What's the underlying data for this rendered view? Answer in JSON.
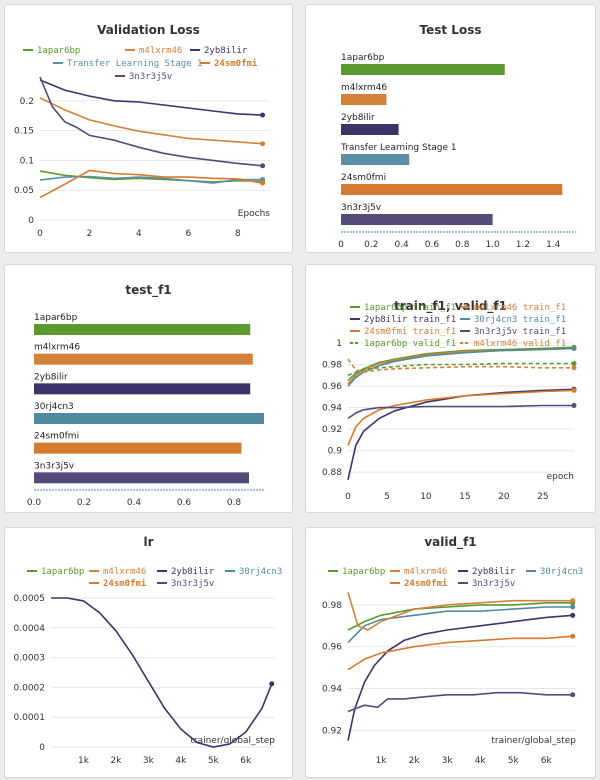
{
  "colors": {
    "1apar6bp": "#5a9a2e",
    "m4lxrm46": "#d4813a",
    "2yb8ilir": "#3b3569",
    "30rj4cn3": "#4f8a9e",
    "24sm0fmi": "#d47b2f",
    "3n3r3j5v": "#564a7a",
    "Transfer Learning Stage 1": "#5b8fa8"
  },
  "chart_data": [
    {
      "id": "validation_loss",
      "type": "line",
      "title": "Validation Loss",
      "xlabel": "Epochs",
      "ylabel": "",
      "xlim": [
        0,
        9.3
      ],
      "ylim": [
        0,
        0.24
      ],
      "xticks": [
        0,
        2,
        4,
        6,
        8
      ],
      "yticks": [
        0,
        0.05,
        0.1,
        0.15,
        0.2
      ],
      "ytick_labels": [
        "0",
        "0.05",
        "0.1",
        "0.15",
        "0.2"
      ],
      "legend": [
        "1apar6bp",
        "m4lxrm46",
        "2yb8ilir",
        "Transfer Learning Stage 1",
        "24sm0fmi",
        "3n3r3j5v"
      ],
      "series": [
        {
          "name": "2yb8ilir",
          "x": [
            0,
            1,
            2,
            3,
            4,
            5,
            6,
            7,
            8,
            9
          ],
          "values": [
            0.235,
            0.218,
            0.208,
            0.2,
            0.198,
            0.193,
            0.188,
            0.183,
            0.178,
            0.176
          ]
        },
        {
          "name": "m4lxrm46",
          "x": [
            0,
            1,
            2,
            3,
            4,
            5,
            6,
            7,
            8,
            9
          ],
          "values": [
            0.205,
            0.185,
            0.168,
            0.158,
            0.149,
            0.143,
            0.137,
            0.134,
            0.131,
            0.128
          ]
        },
        {
          "name": "3n3r3j5v",
          "x": [
            0,
            0.5,
            1,
            1.5,
            2,
            3,
            4,
            5,
            6,
            7,
            8,
            9
          ],
          "values": [
            0.24,
            0.19,
            0.165,
            0.155,
            0.142,
            0.134,
            0.122,
            0.112,
            0.105,
            0.1,
            0.095,
            0.091
          ]
        },
        {
          "name": "1apar6bp",
          "x": [
            0,
            1,
            2,
            3,
            4,
            5,
            6,
            7,
            8,
            9
          ],
          "values": [
            0.082,
            0.075,
            0.071,
            0.068,
            0.07,
            0.068,
            0.066,
            0.064,
            0.066,
            0.065
          ]
        },
        {
          "name": "Transfer Learning Stage 1",
          "x": [
            0,
            1,
            2,
            3,
            4,
            5,
            6,
            7,
            8,
            9
          ],
          "values": [
            0.067,
            0.072,
            0.073,
            0.07,
            0.072,
            0.07,
            0.066,
            0.062,
            0.068,
            0.068
          ]
        },
        {
          "name": "24sm0fmi",
          "x": [
            0,
            1,
            2,
            3,
            4,
            5,
            6,
            7,
            8,
            9
          ],
          "values": [
            0.038,
            0.06,
            0.083,
            0.078,
            0.076,
            0.072,
            0.072,
            0.07,
            0.069,
            0.062
          ]
        }
      ]
    },
    {
      "id": "test_loss",
      "type": "bar",
      "title": "Test Loss",
      "xlim": [
        0,
        1.55
      ],
      "xticks": [
        0,
        0.2,
        0.4,
        0.6,
        0.8,
        1,
        1.2,
        1.4
      ],
      "xtick_labels": [
        "0",
        "0.2",
        "0.4",
        "0.6",
        "0.8",
        "1.0",
        "1.2",
        "1.4"
      ],
      "categories": [
        "1apar6bp",
        "m4lxrm46",
        "2yb8ilir",
        "Transfer Learning Stage 1",
        "24sm0fmi",
        "3n3r3j5v"
      ],
      "values": [
        1.08,
        0.3,
        0.38,
        0.45,
        1.46,
        1.0
      ]
    },
    {
      "id": "test_f1",
      "type": "bar",
      "title": "test_f1",
      "xlim": [
        0,
        0.92
      ],
      "xticks": [
        0,
        0.2,
        0.4,
        0.6,
        0.8
      ],
      "xtick_labels": [
        "0.0",
        "0.2",
        "0.4",
        "0.6",
        "0.8"
      ],
      "categories": [
        "1apar6bp",
        "m4lxrm46",
        "2yb8ilir",
        "30rj4cn3",
        "24sm0fmi",
        "3n3r3j5v"
      ],
      "values": [
        0.865,
        0.875,
        0.865,
        0.92,
        0.83,
        0.86
      ]
    },
    {
      "id": "train_valid_f1",
      "type": "line",
      "title": "train_f1, valid_f1",
      "xlabel": "epoch",
      "xlim": [
        0,
        29
      ],
      "ylim": [
        0.87,
        1.0
      ],
      "xticks": [
        0,
        5,
        10,
        15,
        20,
        25
      ],
      "yticks": [
        0.88,
        0.9,
        0.92,
        0.94,
        0.96,
        0.98,
        1.0
      ],
      "ytick_labels": [
        "0.88",
        "0.9",
        "0.92",
        "0.94",
        "0.96",
        "0.98",
        "1"
      ],
      "legend": [
        "1apar6bp train_f1",
        "m4lxrm46 train_f1",
        "2yb8ilir train_f1",
        "30rj4cn3 train_f1",
        "24sm0fmi train_f1",
        "3n3r3j5v train_f1",
        "1apar6bp valid_f1",
        "m4lxrm46 valid_f1"
      ],
      "series": [
        {
          "name": "1apar6bp train_f1",
          "x": [
            0,
            1,
            2,
            4,
            6,
            10,
            15,
            20,
            25,
            29
          ],
          "values": [
            0.965,
            0.972,
            0.976,
            0.982,
            0.985,
            0.99,
            0.993,
            0.994,
            0.995,
            0.996
          ]
        },
        {
          "name": "m4lxrm46 train_f1",
          "x": [
            0,
            1,
            2,
            4,
            6,
            10,
            15,
            20,
            25,
            29
          ],
          "values": [
            0.962,
            0.97,
            0.975,
            0.981,
            0.984,
            0.989,
            0.992,
            0.993,
            0.994,
            0.995
          ]
        },
        {
          "name": "2yb8ilir train_f1",
          "x": [
            0,
            1,
            2,
            4,
            6,
            10,
            15,
            20,
            25,
            29
          ],
          "values": [
            0.873,
            0.905,
            0.918,
            0.93,
            0.937,
            0.945,
            0.951,
            0.954,
            0.956,
            0.957
          ]
        },
        {
          "name": "30rj4cn3 train_f1",
          "x": [
            0,
            1,
            2,
            4,
            6,
            10,
            15,
            20,
            25,
            29
          ],
          "values": [
            0.96,
            0.968,
            0.973,
            0.979,
            0.983,
            0.988,
            0.991,
            0.993,
            0.994,
            0.995
          ]
        },
        {
          "name": "24sm0fmi train_f1",
          "x": [
            0,
            1,
            2,
            4,
            6,
            10,
            15,
            20,
            25,
            29
          ],
          "values": [
            0.905,
            0.922,
            0.93,
            0.938,
            0.942,
            0.947,
            0.951,
            0.953,
            0.955,
            0.956
          ]
        },
        {
          "name": "3n3r3j5v train_f1",
          "x": [
            0,
            1,
            2,
            4,
            6,
            10,
            15,
            20,
            25,
            29
          ],
          "values": [
            0.93,
            0.935,
            0.938,
            0.94,
            0.94,
            0.941,
            0.941,
            0.941,
            0.942,
            0.942
          ]
        },
        {
          "name": "1apar6bp valid_f1",
          "x": [
            0,
            1,
            2,
            4,
            6,
            10,
            15,
            20,
            25,
            29
          ],
          "values": [
            0.97,
            0.973,
            0.975,
            0.977,
            0.978,
            0.98,
            0.98,
            0.981,
            0.981,
            0.981
          ]
        },
        {
          "name": "m4lxrm46 valid_f1",
          "x": [
            0,
            1,
            2,
            4,
            6,
            10,
            15,
            20,
            25,
            29
          ],
          "values": [
            0.985,
            0.975,
            0.973,
            0.975,
            0.976,
            0.977,
            0.978,
            0.978,
            0.977,
            0.977
          ]
        }
      ]
    },
    {
      "id": "lr",
      "type": "line",
      "title": "lr",
      "xlabel": "trainer/global_step",
      "xlim": [
        0,
        6900
      ],
      "ylim": [
        0,
        0.00052
      ],
      "xticks": [
        1000,
        2000,
        3000,
        4000,
        5000,
        6000
      ],
      "xtick_labels": [
        "1k",
        "2k",
        "3k",
        "4k",
        "5k",
        "6k"
      ],
      "yticks": [
        0,
        0.0001,
        0.0002,
        0.0003,
        0.0004,
        0.0005
      ],
      "ytick_labels": [
        "0",
        "0.0001",
        "0.0002",
        "0.0003",
        "0.0004",
        "0.0005"
      ],
      "legend": [
        "1apar6bp",
        "m4lxrm46",
        "2yb8ilir",
        "30rj4cn3",
        "24sm0fmi",
        "3n3r3j5v"
      ],
      "series": [
        {
          "name": "2yb8ilir",
          "x": [
            0,
            500,
            1000,
            1500,
            2000,
            2500,
            3000,
            3500,
            4000,
            4500,
            5000,
            5500,
            6000,
            6500,
            6800
          ],
          "values": [
            0.0005,
            0.0005,
            0.00049,
            0.00045,
            0.00039,
            0.00031,
            0.00022,
            0.00013,
            6e-05,
            1.5e-05,
            0,
            1e-05,
            5e-05,
            0.00013,
            0.000212
          ]
        }
      ]
    },
    {
      "id": "valid_f1",
      "type": "line",
      "title": "valid_f1",
      "xlabel": "trainer/global_step",
      "xlim": [
        0,
        6900
      ],
      "ylim": [
        0.912,
        0.99
      ],
      "xticks": [
        1000,
        2000,
        3000,
        4000,
        5000,
        6000
      ],
      "xtick_labels": [
        "1k",
        "2k",
        "3k",
        "4k",
        "5k",
        "6k"
      ],
      "yticks": [
        0.92,
        0.94,
        0.96,
        0.98
      ],
      "ytick_labels": [
        "0.92",
        "0.94",
        "0.96",
        "0.98"
      ],
      "legend": [
        "1apar6bp",
        "m4lxrm46",
        "2yb8ilir",
        "30rj4cn3",
        "24sm0fmi",
        "3n3r3j5v"
      ],
      "series": [
        {
          "name": "2yb8ilir",
          "x": [
            0,
            200,
            500,
            800,
            1200,
            1700,
            2300,
            3000,
            4000,
            5000,
            6000,
            6800
          ],
          "values": [
            0.915,
            0.93,
            0.943,
            0.951,
            0.958,
            0.963,
            0.966,
            0.968,
            0.97,
            0.972,
            0.974,
            0.975
          ]
        },
        {
          "name": "3n3r3j5v",
          "x": [
            0,
            500,
            900,
            1200,
            1700,
            2300,
            3000,
            3800,
            4500,
            5200,
            6000,
            6800
          ],
          "values": [
            0.929,
            0.932,
            0.931,
            0.935,
            0.935,
            0.936,
            0.937,
            0.937,
            0.938,
            0.938,
            0.937,
            0.937
          ]
        },
        {
          "name": "24sm0fmi",
          "x": [
            0,
            500,
            1000,
            2000,
            3000,
            4000,
            5000,
            6000,
            6800
          ],
          "values": [
            0.949,
            0.954,
            0.957,
            0.96,
            0.962,
            0.963,
            0.964,
            0.964,
            0.965
          ]
        },
        {
          "name": "30rj4cn3",
          "x": [
            0,
            500,
            1000,
            2000,
            3000,
            4000,
            5000,
            6000,
            6800
          ],
          "values": [
            0.962,
            0.97,
            0.973,
            0.975,
            0.977,
            0.977,
            0.978,
            0.979,
            0.979
          ]
        },
        {
          "name": "1apar6bp",
          "x": [
            0,
            500,
            1000,
            2000,
            3000,
            4000,
            5000,
            6000,
            6800
          ],
          "values": [
            0.968,
            0.972,
            0.975,
            0.978,
            0.979,
            0.98,
            0.98,
            0.981,
            0.981
          ]
        },
        {
          "name": "m4lxrm46",
          "x": [
            0,
            300,
            600,
            1000,
            2000,
            3000,
            4000,
            5000,
            6000,
            6800
          ],
          "values": [
            0.986,
            0.97,
            0.968,
            0.972,
            0.978,
            0.98,
            0.981,
            0.982,
            0.982,
            0.982
          ]
        }
      ]
    }
  ]
}
